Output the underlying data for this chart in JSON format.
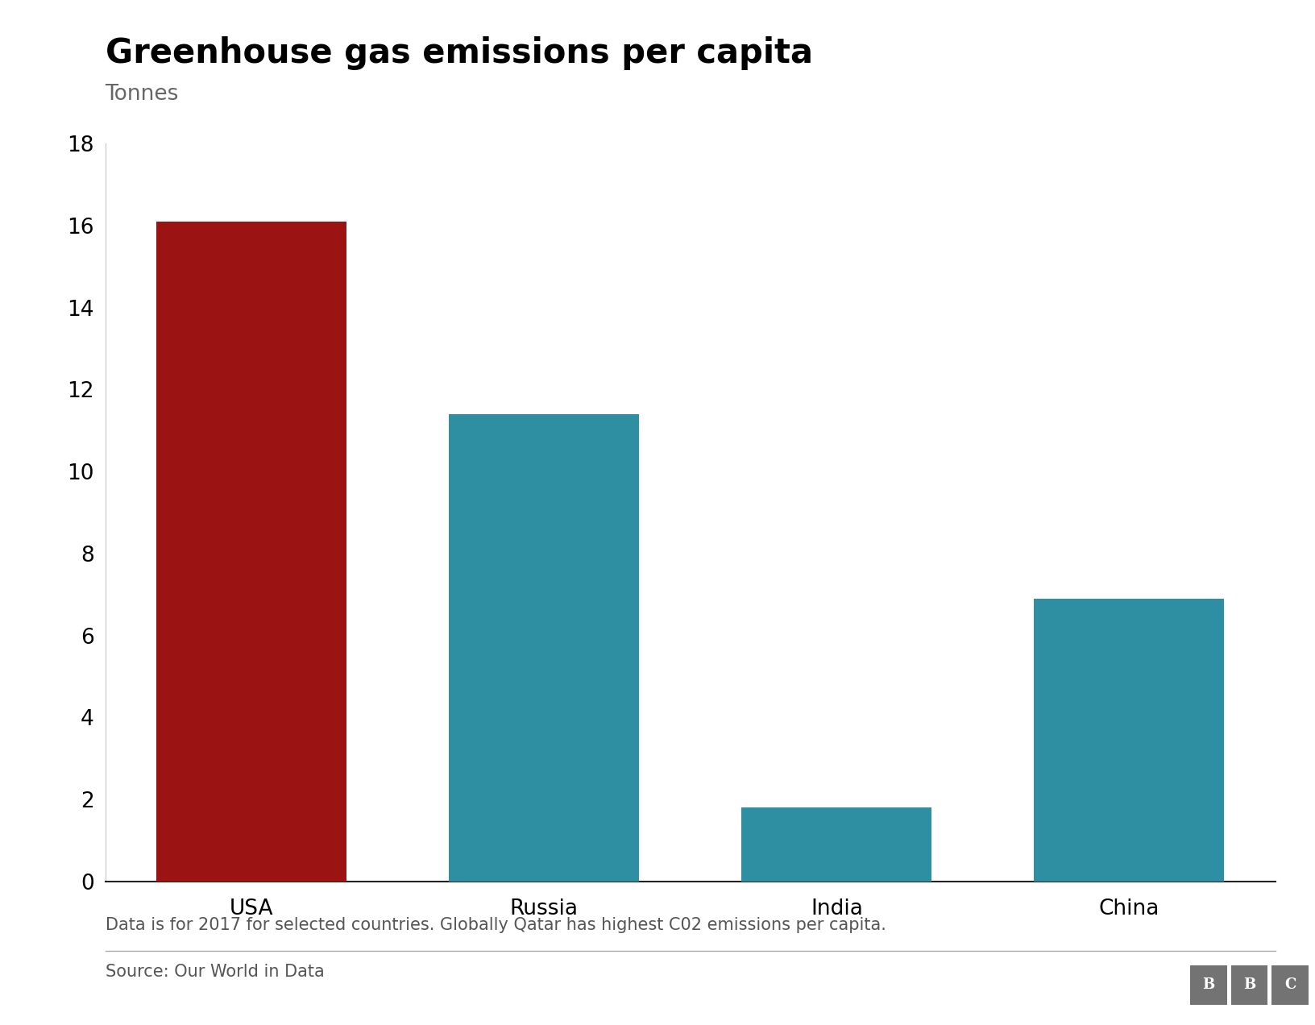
{
  "title": "Greenhouse gas emissions per capita",
  "subtitle": "Tonnes",
  "categories": [
    "USA",
    "Russia",
    "India",
    "China"
  ],
  "values": [
    16.1,
    11.4,
    1.8,
    6.9
  ],
  "bar_colors": [
    "#9b1313",
    "#2e8fa3",
    "#2e8fa3",
    "#2e8fa3"
  ],
  "ylim": [
    0,
    18
  ],
  "yticks": [
    0,
    2,
    4,
    6,
    8,
    10,
    12,
    14,
    16,
    18
  ],
  "footnote": "Data is for 2017 for selected countries. Globally Qatar has highest C02 emissions per capita.",
  "source": "Source: Our World in Data",
  "bbc_letters": [
    "B",
    "B",
    "C"
  ],
  "background_color": "#ffffff",
  "title_fontsize": 30,
  "subtitle_fontsize": 19,
  "tick_fontsize": 19,
  "xlabel_fontsize": 19,
  "footnote_fontsize": 15,
  "source_fontsize": 15,
  "bar_width": 0.65
}
